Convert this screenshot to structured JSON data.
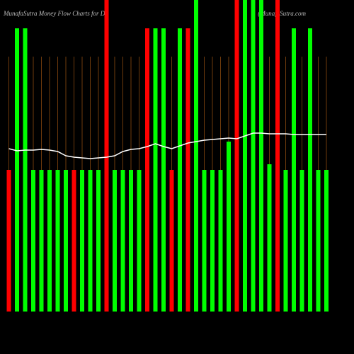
{
  "chart_data": {
    "type": "bar",
    "title": "MunafaSutra  Money Flow  Charts for D",
    "watermark": "(MunafaSutra.com",
    "ylim": [
      0,
      440
    ],
    "bars": {
      "values": [
        200,
        400,
        400,
        200,
        200,
        200,
        200,
        200,
        200,
        200,
        200,
        200,
        440,
        200,
        200,
        200,
        200,
        400,
        400,
        400,
        200,
        400,
        400,
        440,
        200,
        200,
        200,
        240,
        440,
        440,
        440,
        440,
        208,
        440,
        200,
        400,
        200,
        400,
        200,
        200
      ],
      "colors": [
        "#ff0000",
        "#00ff00",
        "#00ff00",
        "#00ff00",
        "#00ff00",
        "#00ff00",
        "#00ff00",
        "#00ff00",
        "#ff0000",
        "#00ff00",
        "#00ff00",
        "#00ff00",
        "#ff0000",
        "#00ff00",
        "#00ff00",
        "#00ff00",
        "#00ff00",
        "#ff0000",
        "#00ff00",
        "#00ff00",
        "#ff0000",
        "#00ff00",
        "#ff0000",
        "#00ff00",
        "#00ff00",
        "#00ff00",
        "#00ff00",
        "#00ff00",
        "#ff0000",
        "#00ff00",
        "#00ff00",
        "#00ff00",
        "#00ff00",
        "#ff0000",
        "#00ff00",
        "#00ff00",
        "#00ff00",
        "#00ff00",
        "#00ff00",
        "#00ff00"
      ]
    },
    "line": {
      "color": "#ffffff",
      "values": [
        230,
        227,
        228,
        228,
        229,
        228,
        226,
        220,
        218,
        217,
        216,
        217,
        218,
        220,
        226,
        229,
        230,
        233,
        237,
        233,
        230,
        234,
        238,
        240,
        242,
        243,
        244,
        245,
        244,
        248,
        252,
        252,
        251,
        251,
        251,
        250,
        250,
        250,
        250,
        250
      ]
    }
  }
}
